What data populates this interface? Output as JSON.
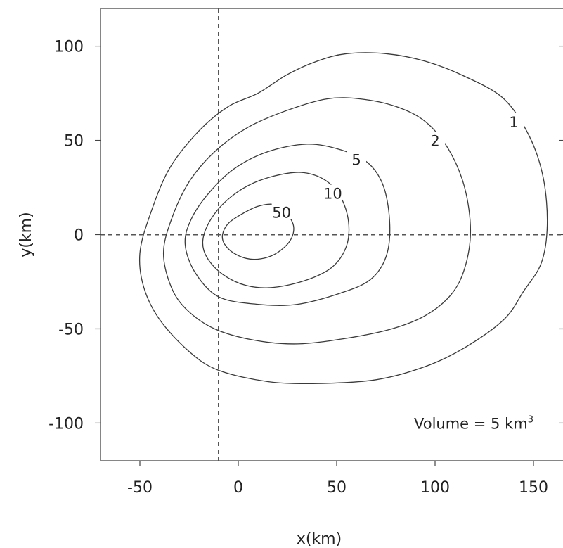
{
  "chart_data": {
    "type": "contour",
    "title": "",
    "xlabel": "x(km)",
    "ylabel": "y(km)",
    "xlim": [
      -70,
      165
    ],
    "ylim": [
      -120,
      120
    ],
    "xticks": [
      -50,
      0,
      50,
      100,
      150
    ],
    "xtick_labels": [
      "-50",
      "0",
      "50",
      "100",
      "150"
    ],
    "yticks": [
      -100,
      -50,
      0,
      50,
      100
    ],
    "ytick_labels": [
      "-100",
      "-50",
      "0",
      "50",
      "100"
    ],
    "grid": false,
    "reference_lines": {
      "vertical_x": -10,
      "horizontal_y": 0
    },
    "annotation": {
      "text_main": "Volume = 5 km",
      "text_sup": "3",
      "x": 90,
      "y": -100
    },
    "contours": [
      {
        "level": 1,
        "label": "1",
        "label_at": [
          140,
          60
        ],
        "points": [
          [
            -50,
            -10
          ],
          [
            -45,
            10
          ],
          [
            -35,
            35
          ],
          [
            -20,
            55
          ],
          [
            -5,
            68
          ],
          [
            10,
            75
          ],
          [
            25,
            85
          ],
          [
            40,
            92
          ],
          [
            55,
            96
          ],
          [
            75,
            96
          ],
          [
            95,
            92
          ],
          [
            115,
            84
          ],
          [
            135,
            72
          ],
          [
            148,
            52
          ],
          [
            155,
            30
          ],
          [
            157,
            5
          ],
          [
            154,
            -15
          ],
          [
            145,
            -30
          ],
          [
            135,
            -45
          ],
          [
            115,
            -60
          ],
          [
            95,
            -70
          ],
          [
            70,
            -77
          ],
          [
            40,
            -79
          ],
          [
            15,
            -78
          ],
          [
            -10,
            -72
          ],
          [
            -25,
            -62
          ],
          [
            -40,
            -45
          ],
          [
            -48,
            -28
          ]
        ]
      },
      {
        "level": 2,
        "label": "2",
        "label_at": [
          100,
          50
        ],
        "points": [
          [
            -38,
            -10
          ],
          [
            -34,
            8
          ],
          [
            -25,
            28
          ],
          [
            -12,
            44
          ],
          [
            5,
            57
          ],
          [
            25,
            66
          ],
          [
            45,
            72
          ],
          [
            62,
            72
          ],
          [
            80,
            68
          ],
          [
            95,
            60
          ],
          [
            107,
            45
          ],
          [
            115,
            25
          ],
          [
            118,
            2
          ],
          [
            115,
            -18
          ],
          [
            108,
            -32
          ],
          [
            95,
            -43
          ],
          [
            78,
            -50
          ],
          [
            55,
            -55
          ],
          [
            30,
            -58
          ],
          [
            8,
            -56
          ],
          [
            -12,
            -50
          ],
          [
            -26,
            -40
          ],
          [
            -34,
            -28
          ]
        ]
      },
      {
        "level": 5,
        "label": "5",
        "label_at": [
          60,
          40
        ],
        "points": [
          [
            -27,
            -5
          ],
          [
            -24,
            8
          ],
          [
            -15,
            22
          ],
          [
            -2,
            35
          ],
          [
            15,
            44
          ],
          [
            35,
            48
          ],
          [
            52,
            45
          ],
          [
            66,
            38
          ],
          [
            74,
            25
          ],
          [
            77,
            5
          ],
          [
            75,
            -12
          ],
          [
            67,
            -24
          ],
          [
            52,
            -31
          ],
          [
            30,
            -37
          ],
          [
            10,
            -37
          ],
          [
            -10,
            -33
          ],
          [
            -22,
            -20
          ]
        ]
      },
      {
        "level": 10,
        "label": "10",
        "label_at": [
          48,
          22
        ],
        "points": [
          [
            -18,
            -3
          ],
          [
            -14,
            8
          ],
          [
            -6,
            18
          ],
          [
            5,
            26
          ],
          [
            18,
            31
          ],
          [
            32,
            33
          ],
          [
            44,
            29
          ],
          [
            52,
            20
          ],
          [
            56,
            7
          ],
          [
            55,
            -6
          ],
          [
            48,
            -17
          ],
          [
            35,
            -24
          ],
          [
            18,
            -28
          ],
          [
            4,
            -27
          ],
          [
            -8,
            -21
          ],
          [
            -16,
            -12
          ]
        ]
      },
      {
        "level": 50,
        "label": "50",
        "label_at": [
          22,
          12
        ],
        "points": [
          [
            -8,
            0
          ],
          [
            -5,
            6
          ],
          [
            2,
            11
          ],
          [
            10,
            15
          ],
          [
            18,
            16
          ],
          [
            24,
            12
          ],
          [
            28,
            5
          ],
          [
            27,
            -2
          ],
          [
            22,
            -8
          ],
          [
            15,
            -12
          ],
          [
            6,
            -13
          ],
          [
            -2,
            -10
          ],
          [
            -7,
            -5
          ]
        ]
      }
    ]
  }
}
